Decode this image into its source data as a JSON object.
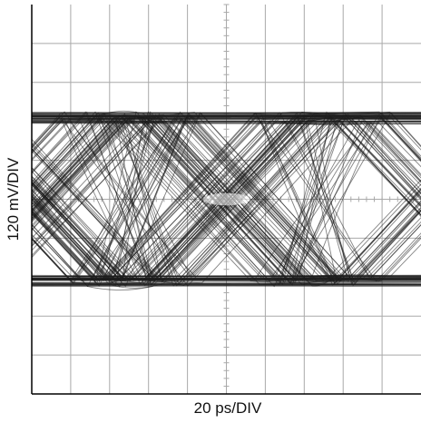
{
  "chart_data": {
    "type": "eye-diagram",
    "xlabel": "20 ps/DIV",
    "ylabel": "120 mV/DIV",
    "x_divisions": 10,
    "y_divisions": 10,
    "x_units_per_div": 20,
    "x_unit": "ps",
    "y_units_per_div": 120,
    "y_unit": "mV",
    "signal": {
      "high_level_div": 2.1,
      "low_level_div": -2.1,
      "trace_band_div": 0.3,
      "eye_opening_div": 0.45,
      "crossing_positions_div": [
        -4.9,
        0,
        4.9
      ]
    },
    "grid": true,
    "colors": {
      "background": "#ffffff",
      "grid": "#a9a9a9",
      "trace": "#1c1c1c",
      "frame": "#000000"
    }
  }
}
